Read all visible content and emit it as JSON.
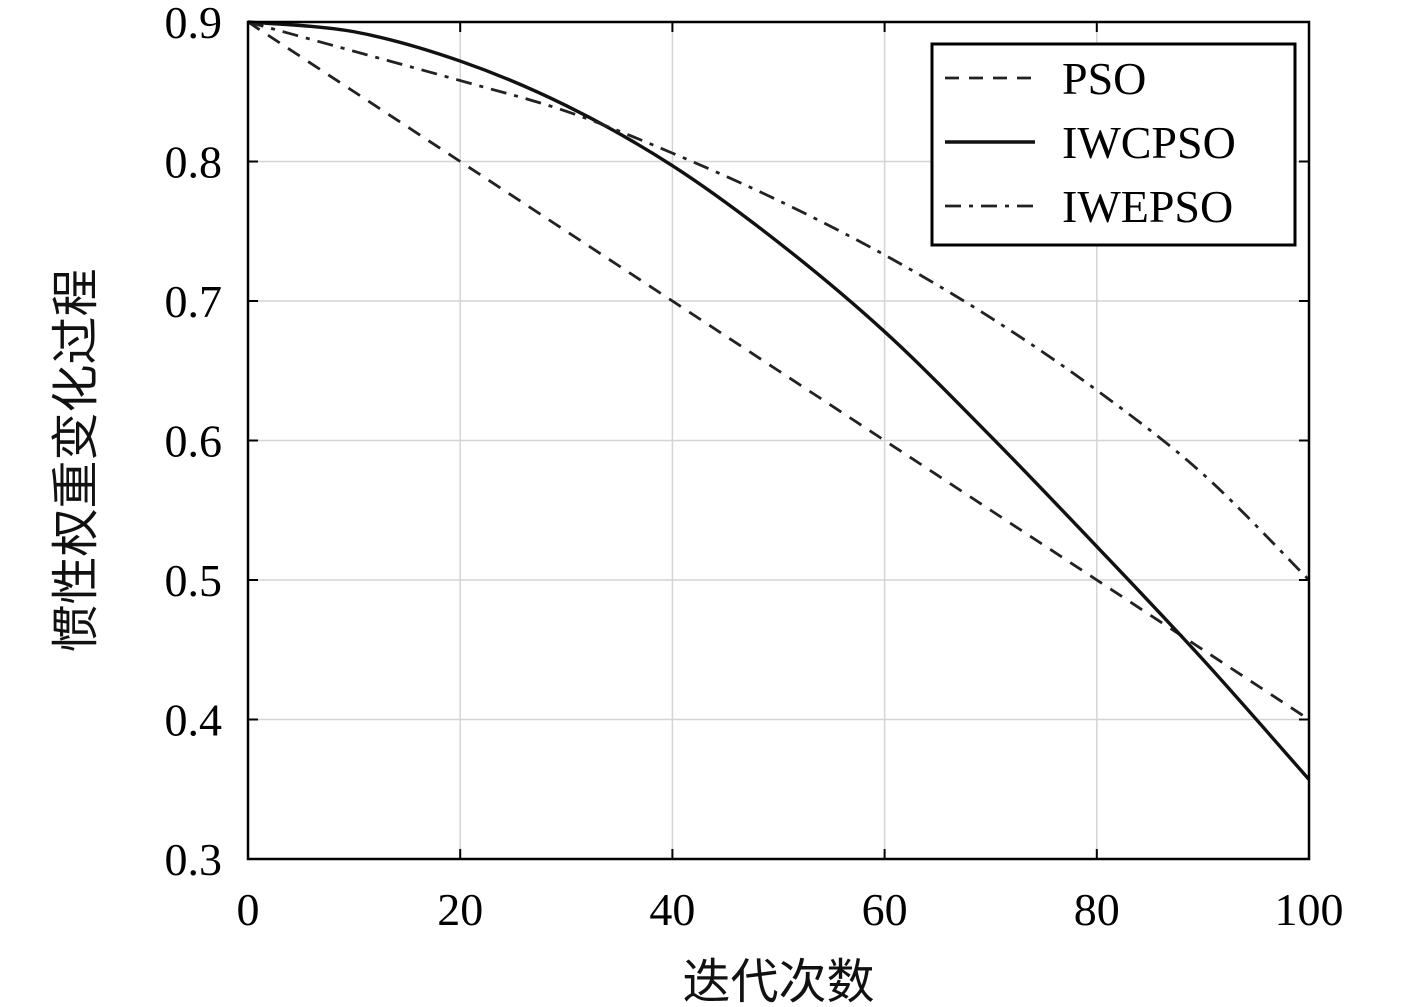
{
  "chart_data": {
    "type": "line",
    "title": "",
    "xlabel": "迭代次数",
    "ylabel": "惯性权重变化过程",
    "xlim": [
      0,
      100
    ],
    "ylim": [
      0.3,
      0.9
    ],
    "xticks": [
      0,
      20,
      40,
      60,
      80,
      100
    ],
    "xtick_labels": [
      "0",
      "20",
      "40",
      "60",
      "80",
      "100"
    ],
    "yticks": [
      0.3,
      0.4,
      0.5,
      0.6,
      0.7,
      0.8,
      0.9
    ],
    "ytick_labels": [
      "0.3",
      "0.4",
      "0.5",
      "0.6",
      "0.7",
      "0.8",
      "0.9"
    ],
    "grid": true,
    "legend_position": "top-right",
    "x": [
      0,
      10,
      20,
      30,
      40,
      50,
      60,
      70,
      80,
      90,
      100
    ],
    "series": [
      {
        "name": "PSO",
        "style": "dashed",
        "color": "#222222",
        "values": [
          0.9,
          0.85,
          0.8,
          0.75,
          0.7,
          0.65,
          0.6,
          0.55,
          0.5,
          0.45,
          0.4
        ]
      },
      {
        "name": "IWCPSO",
        "style": "solid",
        "color": "#111111",
        "values": [
          0.9,
          0.893,
          0.872,
          0.84,
          0.797,
          0.742,
          0.678,
          0.603,
          0.524,
          0.443,
          0.357
        ]
      },
      {
        "name": "IWEPSO",
        "style": "dashdot",
        "color": "#222222",
        "values": [
          0.9,
          0.879,
          0.858,
          0.836,
          0.806,
          0.772,
          0.733,
          0.688,
          0.636,
          0.576,
          0.5
        ]
      }
    ]
  }
}
